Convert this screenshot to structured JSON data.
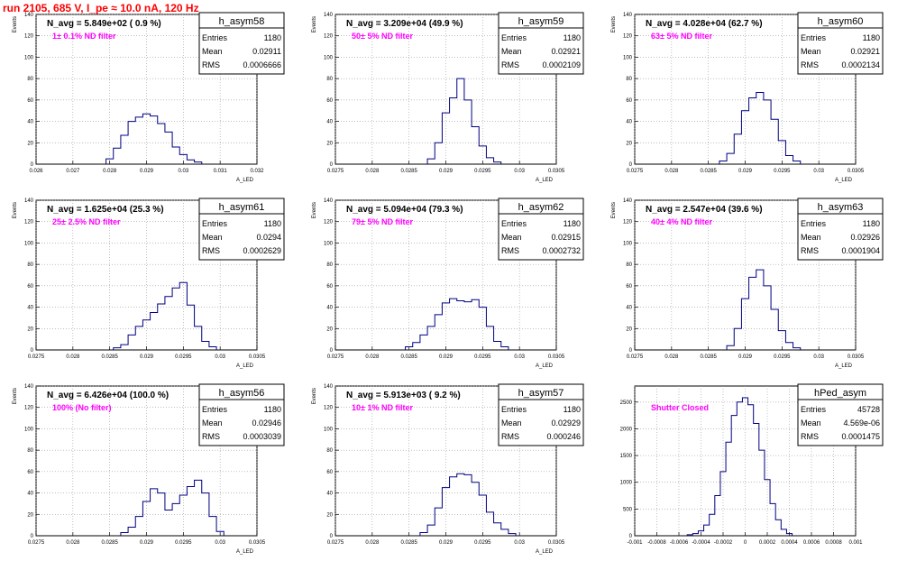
{
  "page_title": "run 2105,   685 V, I_pe ≈ 10.0 nA, 120 Hz",
  "colors": {
    "hist": "#000080",
    "note": "#ff00ff",
    "title": "#ff0000",
    "grid": "#999999"
  },
  "chart_data": [
    {
      "type": "bar",
      "name": "h_asym58",
      "stats": {
        "entries": "1180",
        "mean": "0.02911",
        "rms": "0.0006666"
      },
      "label1": "N_avg = 5.849e+02 ( 0.9 %)",
      "label2": "1± 0.1% ND filter",
      "ylabel": "Events",
      "xlabel": "A_LED",
      "xlim": [
        0.026,
        0.032
      ],
      "ylim": [
        0,
        140
      ],
      "xticks": [
        "0.026",
        "0.027",
        "0.028",
        "0.029",
        "0.03",
        "0.031",
        "0.032"
      ],
      "yticks": [
        "0",
        "20",
        "40",
        "60",
        "80",
        "100",
        "120",
        "140"
      ],
      "x": [
        0.028,
        0.0282,
        0.0284,
        0.0286,
        0.0288,
        0.029,
        0.0292,
        0.0294,
        0.0296,
        0.0298,
        0.03,
        0.0302,
        0.0304
      ],
      "values": [
        5,
        15,
        27,
        40,
        44,
        47,
        45,
        38,
        30,
        16,
        9,
        4,
        2
      ]
    },
    {
      "type": "bar",
      "name": "h_asym59",
      "stats": {
        "entries": "1180",
        "mean": "0.02921",
        "rms": "0.0002109"
      },
      "label1": "N_avg = 3.209e+04 (49.9 %)",
      "label2": "50± 5% ND filter",
      "ylabel": "Events",
      "xlabel": "A_LED",
      "xlim": [
        0.0275,
        0.0305
      ],
      "ylim": [
        0,
        140
      ],
      "xticks": [
        "0.0275",
        "0.028",
        "0.0285",
        "0.029",
        "0.0295",
        "0.03",
        "0.0305"
      ],
      "yticks": [
        "0",
        "20",
        "40",
        "60",
        "80",
        "100",
        "120",
        "140"
      ],
      "x": [
        0.0288,
        0.0289,
        0.029,
        0.0291,
        0.0292,
        0.0293,
        0.0294,
        0.0295,
        0.0296,
        0.0297
      ],
      "values": [
        5,
        20,
        48,
        62,
        80,
        60,
        35,
        17,
        6,
        2
      ]
    },
    {
      "type": "bar",
      "name": "h_asym60",
      "stats": {
        "entries": "1180",
        "mean": "0.02921",
        "rms": "0.0002134"
      },
      "label1": "N_avg = 4.028e+04 (62.7 %)",
      "label2": "63± 5% ND filter",
      "ylabel": "Events",
      "xlabel": "A_LED",
      "xlim": [
        0.0275,
        0.0305
      ],
      "ylim": [
        0,
        140
      ],
      "xticks": [
        "0.0275",
        "0.028",
        "0.0285",
        "0.029",
        "0.0295",
        "0.03",
        "0.0305"
      ],
      "yticks": [
        "0",
        "20",
        "40",
        "60",
        "80",
        "100",
        "120",
        "140"
      ],
      "x": [
        0.0287,
        0.0288,
        0.0289,
        0.029,
        0.0291,
        0.0292,
        0.0293,
        0.0294,
        0.0295,
        0.0296,
        0.0297
      ],
      "values": [
        3,
        10,
        28,
        50,
        62,
        67,
        60,
        42,
        22,
        8,
        3
      ]
    },
    {
      "type": "bar",
      "name": "h_asym61",
      "stats": {
        "entries": "1180",
        "mean": "0.0294",
        "rms": "0.0002629"
      },
      "label1": "N_avg = 1.625e+04 (25.3 %)",
      "label2": "25± 2.5% ND filter",
      "ylabel": "Events",
      "xlabel": "A_LED",
      "xlim": [
        0.0275,
        0.0305
      ],
      "ylim": [
        0,
        140
      ],
      "xticks": [
        "0.0275",
        "0.028",
        "0.0285",
        "0.029",
        "0.0295",
        "0.03",
        "0.0305"
      ],
      "yticks": [
        "0",
        "20",
        "40",
        "60",
        "80",
        "100",
        "120",
        "140"
      ],
      "x": [
        0.0286,
        0.0287,
        0.0288,
        0.0289,
        0.029,
        0.0291,
        0.0292,
        0.0293,
        0.0294,
        0.0295,
        0.0296,
        0.0297,
        0.0298,
        0.0299
      ],
      "values": [
        2,
        5,
        14,
        22,
        28,
        35,
        43,
        50,
        58,
        63,
        42,
        22,
        8,
        3
      ]
    },
    {
      "type": "bar",
      "name": "h_asym62",
      "stats": {
        "entries": "1180",
        "mean": "0.02915",
        "rms": "0.0002732"
      },
      "label1": "N_avg = 5.094e+04 (79.3 %)",
      "label2": "79± 5% ND filter",
      "ylabel": "Events",
      "xlabel": "A_LED",
      "xlim": [
        0.0275,
        0.0305
      ],
      "ylim": [
        0,
        140
      ],
      "xticks": [
        "0.0275",
        "0.028",
        "0.0285",
        "0.029",
        "0.0295",
        "0.03",
        "0.0305"
      ],
      "yticks": [
        "0",
        "20",
        "40",
        "60",
        "80",
        "100",
        "120",
        "140"
      ],
      "x": [
        0.0285,
        0.0286,
        0.0287,
        0.0288,
        0.0289,
        0.029,
        0.0291,
        0.0292,
        0.0293,
        0.0294,
        0.0295,
        0.0296,
        0.0297,
        0.0298
      ],
      "values": [
        3,
        7,
        14,
        22,
        33,
        44,
        48,
        46,
        45,
        47,
        40,
        22,
        8,
        3
      ]
    },
    {
      "type": "bar",
      "name": "h_asym63",
      "stats": {
        "entries": "1180",
        "mean": "0.02926",
        "rms": "0.0001904"
      },
      "label1": "N_avg = 2.547e+04 (39.6 %)",
      "label2": "40± 4% ND filter",
      "ylabel": "Events",
      "xlabel": "A_LED",
      "xlim": [
        0.0275,
        0.0305
      ],
      "ylim": [
        0,
        140
      ],
      "xticks": [
        "0.0275",
        "0.028",
        "0.0285",
        "0.029",
        "0.0295",
        "0.03",
        "0.0305"
      ],
      "yticks": [
        "0",
        "20",
        "40",
        "60",
        "80",
        "100",
        "120",
        "140"
      ],
      "x": [
        0.0288,
        0.0289,
        0.029,
        0.0291,
        0.0292,
        0.0293,
        0.0294,
        0.0295,
        0.0296,
        0.0297
      ],
      "values": [
        4,
        20,
        48,
        68,
        75,
        60,
        38,
        18,
        7,
        2
      ]
    },
    {
      "type": "bar",
      "name": "h_asym56",
      "stats": {
        "entries": "1180",
        "mean": "0.02946",
        "rms": "0.0003039"
      },
      "label1": "N_avg = 6.426e+04 (100.0 %)",
      "label2": "100% (No filter)",
      "ylabel": "Events",
      "xlabel": "A_LED",
      "xlim": [
        0.0275,
        0.0305
      ],
      "ylim": [
        0,
        140
      ],
      "xticks": [
        "0.0275",
        "0.028",
        "0.0285",
        "0.029",
        "0.0295",
        "0.03",
        "0.0305"
      ],
      "yticks": [
        "0",
        "20",
        "40",
        "60",
        "80",
        "100",
        "120",
        "140"
      ],
      "x": [
        0.0287,
        0.0288,
        0.0289,
        0.029,
        0.0291,
        0.0292,
        0.0293,
        0.0294,
        0.0295,
        0.0296,
        0.0297,
        0.0298,
        0.0299,
        0.03
      ],
      "values": [
        3,
        8,
        18,
        32,
        44,
        40,
        24,
        30,
        38,
        46,
        52,
        40,
        18,
        4
      ]
    },
    {
      "type": "bar",
      "name": "h_asym57",
      "stats": {
        "entries": "1180",
        "mean": "0.02929",
        "rms": "0.000246"
      },
      "label1": "N_avg = 5.913e+03 ( 9.2 %)",
      "label2": "10± 1% ND filter",
      "ylabel": "Events",
      "xlabel": "A_LED",
      "xlim": [
        0.0275,
        0.0305
      ],
      "ylim": [
        0,
        140
      ],
      "xticks": [
        "0.0275",
        "0.028",
        "0.0285",
        "0.029",
        "0.0295",
        "0.03",
        "0.0305"
      ],
      "yticks": [
        "0",
        "20",
        "40",
        "60",
        "80",
        "100",
        "120",
        "140"
      ],
      "x": [
        0.0287,
        0.0288,
        0.0289,
        0.029,
        0.0291,
        0.0292,
        0.0293,
        0.0294,
        0.0295,
        0.0296,
        0.0297,
        0.0298,
        0.0299
      ],
      "values": [
        3,
        10,
        26,
        45,
        55,
        58,
        57,
        50,
        38,
        22,
        12,
        6,
        2
      ]
    },
    {
      "type": "bar",
      "name": "hPed_asym",
      "stats": {
        "entries": "45728",
        "mean": "4.569e-06",
        "rms": "0.0001475"
      },
      "label1": "",
      "label2": "Shutter Closed",
      "ylabel": "",
      "xlabel": "",
      "xlim": [
        -0.001,
        0.001
      ],
      "ylim": [
        0,
        2800
      ],
      "xticks": [
        "-0.001",
        "-0.0008",
        "-0.0006",
        "-0.0004",
        "-0.0002",
        "0",
        "0.0002",
        "0.0004",
        "0.0006",
        "0.0008",
        "0.001"
      ],
      "yticks": [
        "0",
        "500",
        "1000",
        "1500",
        "2000",
        "2500"
      ],
      "x": [
        -0.0005,
        -0.00045,
        -0.0004,
        -0.00035,
        -0.0003,
        -0.00025,
        -0.0002,
        -0.00015,
        -0.0001,
        -5e-05,
        0.0,
        5e-05,
        0.0001,
        0.00015,
        0.0002,
        0.00025,
        0.0003,
        0.00035,
        0.0004
      ],
      "values": [
        20,
        40,
        90,
        200,
        400,
        750,
        1200,
        1750,
        2250,
        2500,
        2580,
        2450,
        2100,
        1600,
        1050,
        600,
        300,
        120,
        40
      ]
    }
  ]
}
